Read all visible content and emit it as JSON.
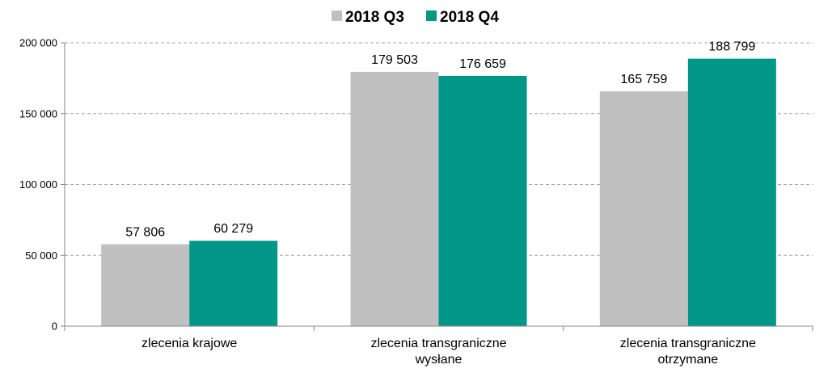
{
  "chart_data": {
    "type": "bar",
    "categories": [
      [
        "zlecenia krajowe"
      ],
      [
        "zlecenia transgraniczne",
        "wysłane"
      ],
      [
        "zlecenia transgraniczne",
        "otrzymane"
      ]
    ],
    "series": [
      {
        "name": "2018 Q3",
        "values": [
          57806,
          179503,
          165759
        ],
        "labels": [
          "57 806",
          "179 503",
          "165 759"
        ],
        "color": "#c0c0c0"
      },
      {
        "name": "2018 Q4",
        "values": [
          60279,
          176659,
          188799
        ],
        "labels": [
          "60 279",
          "176 659",
          "188 799"
        ],
        "color": "#009688"
      }
    ],
    "ylim": [
      0,
      200000
    ],
    "yticks": [
      {
        "value": 0,
        "label": "0"
      },
      {
        "value": 50000,
        "label": "50 000"
      },
      {
        "value": 100000,
        "label": "100 000"
      },
      {
        "value": 150000,
        "label": "150 000"
      },
      {
        "value": 200000,
        "label": "200 000"
      }
    ],
    "grid": true,
    "legend_position": "top-center",
    "colors": {
      "gridline": "#a6a6a6",
      "axis": "#868686",
      "q3": "#c0c0c0",
      "q4": "#009688"
    }
  }
}
